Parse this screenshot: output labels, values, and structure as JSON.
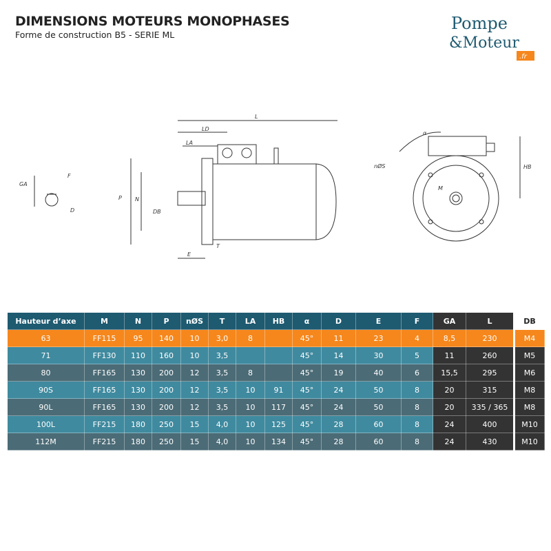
{
  "header": {
    "title": "DIMENSIONS MOTEURS MONOPHASES",
    "subtitle": "Forme de construction B5 - SERIE ML"
  },
  "logo": {
    "line1": "Pompe",
    "line2": "&Moteur",
    "tld": ".fr",
    "colors": {
      "text": "#1e5a70",
      "badge": "#f6871c"
    }
  },
  "drawing_labels": {
    "GA": "GA",
    "F": "F",
    "D": "D",
    "L": "L",
    "LD": "LD",
    "LA": "LA",
    "P": "P",
    "N": "N",
    "DB": "DB",
    "T": "T",
    "E": "E",
    "alpha": "α",
    "nS": "nØS",
    "M": "M",
    "HB": "HB"
  },
  "table": {
    "columns": [
      "Hauteur d’axe",
      "M",
      "N",
      "P",
      "nØS",
      "T",
      "LA",
      "HB",
      "α",
      "D",
      "E",
      "F",
      "GA",
      "L",
      "DB"
    ],
    "rows": [
      [
        "63",
        "FF115",
        "95",
        "140",
        "10",
        "3,0",
        "8",
        "",
        "45°",
        "11",
        "23",
        "4",
        "8,5",
        "230",
        "M4"
      ],
      [
        "71",
        "FF130",
        "110",
        "160",
        "10",
        "3,5",
        "",
        "",
        "45°",
        "14",
        "30",
        "5",
        "11",
        "260",
        "M5"
      ],
      [
        "80",
        "FF165",
        "130",
        "200",
        "12",
        "3,5",
        "8",
        "",
        "45°",
        "19",
        "40",
        "6",
        "15,5",
        "295",
        "M6"
      ],
      [
        "90S",
        "FF165",
        "130",
        "200",
        "12",
        "3,5",
        "10",
        "91",
        "45°",
        "24",
        "50",
        "8",
        "20",
        "315",
        "M8"
      ],
      [
        "90L",
        "FF165",
        "130",
        "200",
        "12",
        "3,5",
        "10",
        "117",
        "45°",
        "24",
        "50",
        "8",
        "20",
        "335 / 365",
        "M8"
      ],
      [
        "100L",
        "FF215",
        "180",
        "250",
        "15",
        "4,0",
        "10",
        "125",
        "45°",
        "28",
        "60",
        "8",
        "24",
        "400",
        "M10"
      ],
      [
        "112M",
        "FF215",
        "180",
        "250",
        "15",
        "4,0",
        "10",
        "134",
        "45°",
        "28",
        "60",
        "8",
        "24",
        "430",
        "M10"
      ]
    ],
    "colors": {
      "header": "#1e5a70",
      "highlight": "#f6871c",
      "row_light": "#3f8a9f",
      "row_dark": "#4b6b76",
      "dark_cols": "#333333"
    }
  }
}
